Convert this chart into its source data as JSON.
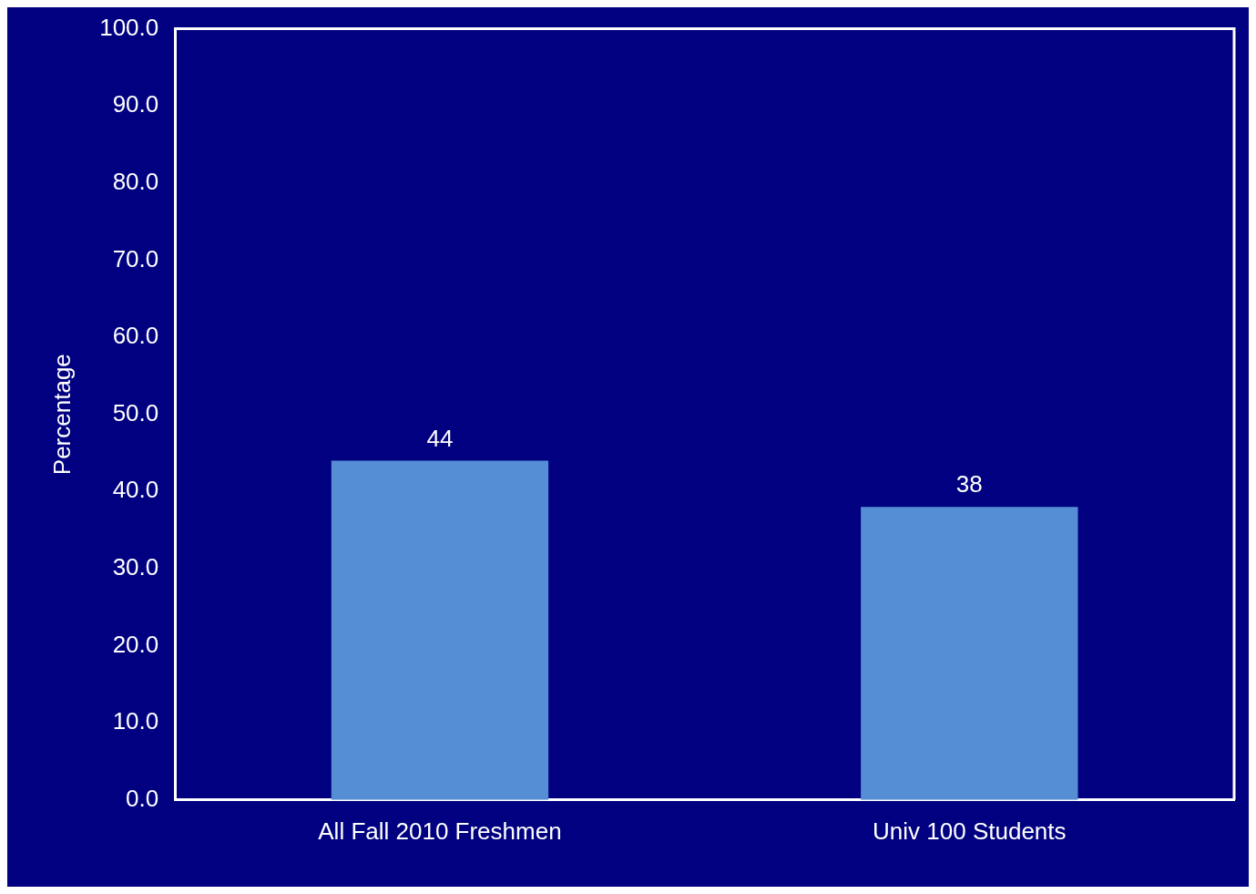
{
  "chart_data": {
    "type": "bar",
    "ylabel": "Percentage",
    "categories": [
      "All Fall 2010 Freshmen",
      "Univ 100 Students"
    ],
    "values": [
      44,
      38
    ],
    "color": "#558ed5",
    "ylim": [
      0,
      100
    ],
    "yticks": [
      {
        "value": 0,
        "label": "0.0"
      },
      {
        "value": 10,
        "label": "10.0"
      },
      {
        "value": 20,
        "label": "20.0"
      },
      {
        "value": 30,
        "label": "30.0"
      },
      {
        "value": 40,
        "label": "40.0"
      },
      {
        "value": 50,
        "label": "50.0"
      },
      {
        "value": 60,
        "label": "60.0"
      },
      {
        "value": 70,
        "label": "70.0"
      },
      {
        "value": 80,
        "label": "80.0"
      },
      {
        "value": 90,
        "label": "90.0"
      },
      {
        "value": 100,
        "label": "100.0"
      }
    ],
    "grid": false,
    "legend": false,
    "data_labels": true
  }
}
